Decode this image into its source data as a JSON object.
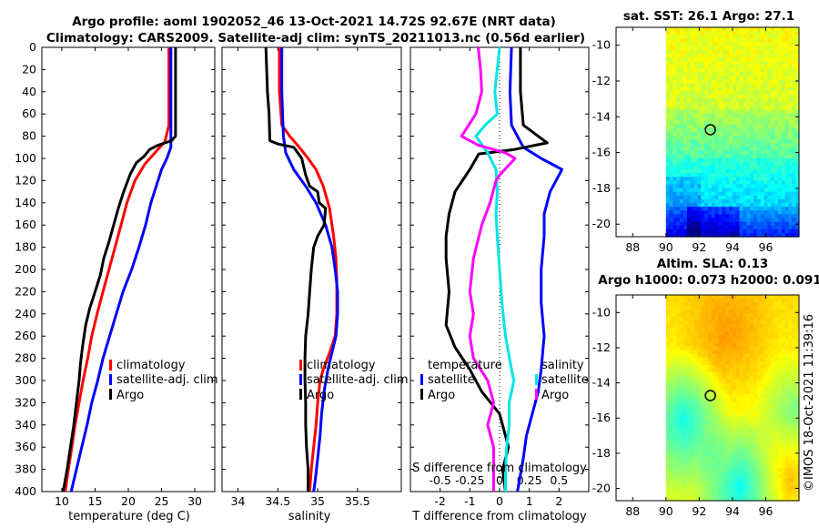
{
  "header": {
    "line1": "Argo profile: aoml 1902052_46 13-Oct-2021 14.72S 92.67E (NRT data)",
    "line2": "Climatology: CARS2009. Satellite-adj clim: synTS_20211013.nc (0.56d earlier)"
  },
  "colors": {
    "climatology": "#ff0000",
    "satellite": "#0000ff",
    "argo": "#000000",
    "s_diff_satellite": "#00e5e5",
    "s_diff_argo": "#ff00ff"
  },
  "chart_data": [
    {
      "id": "temperature",
      "type": "line",
      "xlabel": "temperature (deg C)",
      "xlim": [
        7,
        33
      ],
      "xticks": [
        10,
        15,
        20,
        25,
        30
      ],
      "ylim": [
        400,
        0
      ],
      "yticks": [
        0,
        20,
        40,
        60,
        80,
        100,
        120,
        140,
        160,
        180,
        200,
        220,
        240,
        260,
        280,
        300,
        320,
        340,
        360,
        380,
        400
      ],
      "legend": [
        "climatology",
        "satellite-adj. clim",
        "Argo"
      ],
      "series": [
        {
          "name": "climatology",
          "color": "#ff0000",
          "points": [
            [
              26.1,
              0
            ],
            [
              26.1,
              40
            ],
            [
              26.1,
              70
            ],
            [
              25.5,
              85
            ],
            [
              24.0,
              95
            ],
            [
              22.5,
              105
            ],
            [
              21.0,
              120
            ],
            [
              19.8,
              140
            ],
            [
              18.9,
              160
            ],
            [
              18.0,
              180
            ],
            [
              17.1,
              200
            ],
            [
              16.2,
              220
            ],
            [
              15.3,
              240
            ],
            [
              14.5,
              260
            ],
            [
              13.9,
              280
            ],
            [
              13.2,
              300
            ],
            [
              12.6,
              320
            ],
            [
              12.0,
              340
            ],
            [
              11.5,
              360
            ],
            [
              11.0,
              380
            ],
            [
              10.5,
              400
            ]
          ]
        },
        {
          "name": "satellite-adj. clim",
          "color": "#0000ff",
          "points": [
            [
              26.4,
              0
            ],
            [
              26.4,
              40
            ],
            [
              26.4,
              90
            ],
            [
              25.8,
              100
            ],
            [
              25.0,
              110
            ],
            [
              24.2,
              125
            ],
            [
              23.4,
              140
            ],
            [
              22.6,
              160
            ],
            [
              21.6,
              180
            ],
            [
              20.5,
              200
            ],
            [
              19.2,
              220
            ],
            [
              18.2,
              240
            ],
            [
              17.2,
              260
            ],
            [
              16.2,
              280
            ],
            [
              15.4,
              300
            ],
            [
              14.5,
              320
            ],
            [
              13.8,
              340
            ],
            [
              13.0,
              360
            ],
            [
              12.2,
              380
            ],
            [
              11.4,
              400
            ]
          ]
        },
        {
          "name": "Argo",
          "color": "#000000",
          "points": [
            [
              27.1,
              0
            ],
            [
              27.1,
              40
            ],
            [
              27.1,
              80
            ],
            [
              26.5,
              84
            ],
            [
              24.5,
              88
            ],
            [
              23.2,
              92
            ],
            [
              22.4,
              98
            ],
            [
              21.2,
              104
            ],
            [
              20.3,
              114
            ],
            [
              19.3,
              130
            ],
            [
              18.5,
              145
            ],
            [
              17.8,
              160
            ],
            [
              17.1,
              175
            ],
            [
              16.3,
              190
            ],
            [
              15.8,
              205
            ],
            [
              15.0,
              220
            ],
            [
              14.2,
              235
            ],
            [
              13.6,
              250
            ],
            [
              13.1,
              270
            ],
            [
              12.8,
              285
            ],
            [
              12.6,
              300
            ],
            [
              12.2,
              320
            ],
            [
              11.8,
              340
            ],
            [
              11.3,
              360
            ],
            [
              10.8,
              380
            ],
            [
              10.2,
              400
            ]
          ]
        }
      ]
    },
    {
      "id": "salinity",
      "type": "line",
      "xlabel": "salinity",
      "xlim": [
        33.8,
        36.05
      ],
      "xticks": [
        34,
        34.5,
        35,
        35.5
      ],
      "ylim": [
        400,
        0
      ],
      "legend": [
        "climatology",
        "satellite-adj. clim",
        "Argo"
      ],
      "series": [
        {
          "name": "climatology",
          "color": "#ff0000",
          "points": [
            [
              34.52,
              0
            ],
            [
              34.52,
              40
            ],
            [
              34.55,
              70
            ],
            [
              34.65,
              80
            ],
            [
              34.77,
              90
            ],
            [
              34.88,
              100
            ],
            [
              34.98,
              110
            ],
            [
              35.07,
              125
            ],
            [
              35.15,
              145
            ],
            [
              35.2,
              170
            ],
            [
              35.23,
              190
            ],
            [
              35.24,
              210
            ],
            [
              35.24,
              240
            ],
            [
              35.22,
              260
            ],
            [
              35.15,
              275
            ],
            [
              35.07,
              290
            ],
            [
              35.03,
              300
            ],
            [
              35.0,
              320
            ],
            [
              34.98,
              340
            ],
            [
              34.95,
              360
            ],
            [
              34.92,
              380
            ],
            [
              34.9,
              400
            ]
          ]
        },
        {
          "name": "satellite-adj. clim",
          "color": "#0000ff",
          "points": [
            [
              34.55,
              0
            ],
            [
              34.55,
              40
            ],
            [
              34.57,
              80
            ],
            [
              34.6,
              95
            ],
            [
              34.7,
              110
            ],
            [
              34.85,
              125
            ],
            [
              34.98,
              140
            ],
            [
              35.1,
              160
            ],
            [
              35.18,
              180
            ],
            [
              35.22,
              200
            ],
            [
              35.25,
              220
            ],
            [
              35.25,
              240
            ],
            [
              35.23,
              260
            ],
            [
              35.18,
              275
            ],
            [
              35.13,
              290
            ],
            [
              35.08,
              310
            ],
            [
              35.05,
              330
            ],
            [
              35.03,
              350
            ],
            [
              35.0,
              370
            ],
            [
              34.97,
              390
            ],
            [
              34.95,
              400
            ]
          ]
        },
        {
          "name": "Argo",
          "color": "#000000",
          "points": [
            [
              34.35,
              0
            ],
            [
              34.37,
              40
            ],
            [
              34.39,
              60
            ],
            [
              34.4,
              84
            ],
            [
              34.5,
              87
            ],
            [
              34.7,
              90
            ],
            [
              34.8,
              100
            ],
            [
              34.85,
              115
            ],
            [
              34.9,
              125
            ],
            [
              35.0,
              130
            ],
            [
              35.02,
              140
            ],
            [
              35.1,
              145
            ],
            [
              35.08,
              160
            ],
            [
              35.0,
              170
            ],
            [
              34.95,
              180
            ],
            [
              34.92,
              200
            ],
            [
              34.9,
              220
            ],
            [
              34.88,
              240
            ],
            [
              34.85,
              260
            ],
            [
              34.84,
              280
            ],
            [
              34.84,
              300
            ],
            [
              34.85,
              320
            ],
            [
              34.85,
              340
            ],
            [
              34.86,
              360
            ],
            [
              34.88,
              380
            ],
            [
              34.88,
              400
            ]
          ]
        }
      ]
    },
    {
      "id": "differences",
      "type": "line",
      "xlabel": "T difference from climatology",
      "xlabel2": "S difference from climatology",
      "xlim": [
        -3,
        3
      ],
      "xticks": [
        -2,
        -1,
        0,
        1,
        2
      ],
      "s_xticks": [
        -0.5,
        -0.25,
        0,
        0.25,
        0.5
      ],
      "legend_left": [
        "temperature",
        "satellite",
        "Argo"
      ],
      "legend_right": [
        "salinity",
        "satellite",
        "Argo"
      ],
      "series": [
        {
          "name": "T satellite",
          "color": "#0000ff",
          "points": [
            [
              0.4,
              0
            ],
            [
              0.35,
              40
            ],
            [
              0.4,
              70
            ],
            [
              0.8,
              90
            ],
            [
              1.4,
              100
            ],
            [
              2.1,
              110
            ],
            [
              1.7,
              130
            ],
            [
              1.5,
              150
            ],
            [
              1.5,
              170
            ],
            [
              1.4,
              200
            ],
            [
              1.4,
              230
            ],
            [
              1.5,
              260
            ],
            [
              1.4,
              290
            ],
            [
              1.3,
              310
            ],
            [
              1.1,
              330
            ],
            [
              0.9,
              350
            ],
            [
              0.8,
              370
            ],
            [
              0.6,
              400
            ]
          ]
        },
        {
          "name": "T Argo",
          "color": "#000000",
          "points": [
            [
              0.7,
              0
            ],
            [
              0.7,
              40
            ],
            [
              0.8,
              70
            ],
            [
              1.6,
              86
            ],
            [
              0.5,
              92
            ],
            [
              -0.7,
              96
            ],
            [
              -1.0,
              110
            ],
            [
              -1.5,
              130
            ],
            [
              -1.7,
              150
            ],
            [
              -1.8,
              170
            ],
            [
              -1.8,
              190
            ],
            [
              -1.7,
              220
            ],
            [
              -1.8,
              250
            ],
            [
              -1.5,
              270
            ],
            [
              -1.0,
              290
            ],
            [
              -0.6,
              310
            ],
            [
              0.0,
              330
            ],
            [
              0.3,
              360
            ],
            [
              0.1,
              380
            ],
            [
              0.2,
              400
            ]
          ]
        },
        {
          "name": "S satellite",
          "color": "#00e5e5",
          "points": [
            [
              0.0,
              0
            ],
            [
              -0.04,
              40
            ],
            [
              -0.02,
              60
            ],
            [
              -0.12,
              70
            ],
            [
              -0.2,
              80
            ],
            [
              -0.1,
              95
            ],
            [
              -0.03,
              110
            ],
            [
              -0.02,
              130
            ],
            [
              -0.03,
              150
            ],
            [
              -0.02,
              170
            ],
            [
              0.0,
              200
            ],
            [
              0.02,
              230
            ],
            [
              0.05,
              260
            ],
            [
              0.1,
              290
            ],
            [
              0.12,
              300
            ],
            [
              0.08,
              320
            ],
            [
              0.08,
              340
            ],
            [
              0.06,
              360
            ],
            [
              0.05,
              380
            ],
            [
              0.05,
              400
            ]
          ]
        },
        {
          "name": "S Argo",
          "color": "#ff00ff",
          "points": [
            [
              -0.18,
              0
            ],
            [
              -0.16,
              20
            ],
            [
              -0.15,
              40
            ],
            [
              -0.2,
              60
            ],
            [
              -0.32,
              80
            ],
            [
              -0.18,
              88
            ],
            [
              0.05,
              95
            ],
            [
              0.13,
              100
            ],
            [
              0.0,
              115
            ],
            [
              -0.03,
              120
            ],
            [
              -0.08,
              140
            ],
            [
              -0.15,
              160
            ],
            [
              -0.22,
              190
            ],
            [
              -0.25,
              220
            ],
            [
              -0.22,
              240
            ],
            [
              -0.25,
              260
            ],
            [
              -0.22,
              280
            ],
            [
              -0.1,
              300
            ],
            [
              -0.05,
              320
            ],
            [
              -0.1,
              340
            ],
            [
              -0.05,
              360
            ],
            [
              -0.05,
              380
            ],
            [
              -0.05,
              400
            ]
          ]
        }
      ]
    },
    {
      "id": "sst_map",
      "type": "heatmap",
      "title": "sat. SST: 26.1 Argo: 27.1",
      "xticks": [
        88,
        90,
        92,
        94,
        96
      ],
      "yticks": [
        -10,
        -12,
        -14,
        -16,
        -18,
        -20
      ],
      "xlim": [
        87,
        98
      ],
      "ylim": [
        -20.7,
        -9
      ]
    },
    {
      "id": "sla_map",
      "type": "heatmap",
      "title": "Altim. SLA: 0.13",
      "title2": "Argo h1000: 0.073 h2000: 0.091",
      "xticks": [
        88,
        90,
        92,
        94,
        96
      ],
      "yticks": [
        -10,
        -12,
        -14,
        -16,
        -18,
        -20
      ],
      "xlim": [
        87,
        98
      ],
      "ylim": [
        -20.7,
        -9
      ]
    }
  ],
  "profile_location": {
    "lon": 92.67,
    "lat": -14.72
  },
  "credit": "©IMOS 18-Oct-2021 11:39:16"
}
